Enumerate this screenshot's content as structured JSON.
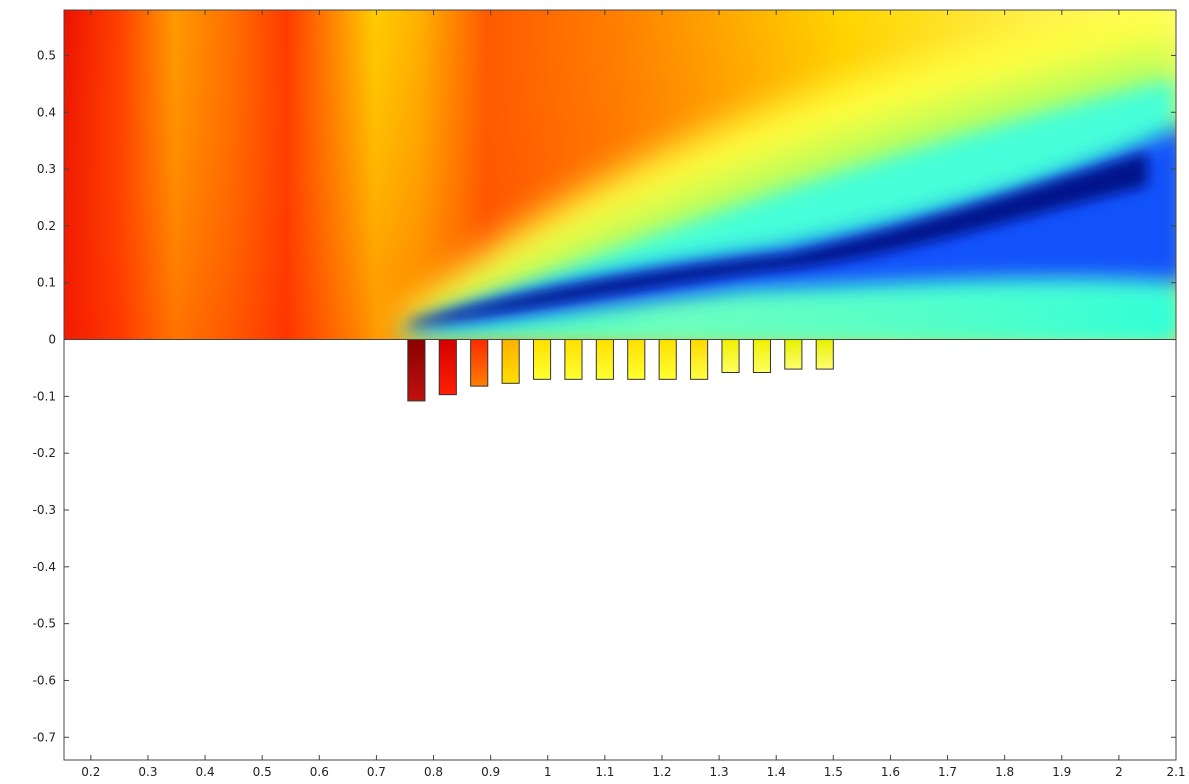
{
  "chart_data": {
    "type": "heatmap",
    "title": "",
    "xlabel": "",
    "ylabel": "",
    "xlim": [
      0.153,
      2.1
    ],
    "ylim": [
      -0.74,
      0.58
    ],
    "x_ticks": [
      "0.2",
      "0.3",
      "0.4",
      "0.5",
      "0.6",
      "0.7",
      "0.8",
      "0.9",
      "1",
      "1.1",
      "1.2",
      "1.3",
      "1.4",
      "1.5",
      "1.6",
      "1.7",
      "1.8",
      "1.9",
      "2",
      "2.1"
    ],
    "y_ticks": [
      "0.5",
      "0.4",
      "0.3",
      "0.2",
      "0.1",
      "0",
      "-0.1",
      "-0.2",
      "-0.3",
      "-0.4",
      "-0.5",
      "-0.6",
      "-0.7"
    ],
    "grid": false,
    "colormap": "jet",
    "field": {
      "x_range": [
        0.153,
        2.1
      ],
      "y_range": [
        0,
        0.58
      ],
      "description_colors": [
        "#7f0000",
        "#ff0000",
        "#ff8c00",
        "#ffff00",
        "#00ffff",
        "#0000ff",
        "#00007f"
      ]
    },
    "bars": {
      "width": 0.03,
      "items": [
        {
          "x": 0.77,
          "depth": -0.108,
          "color_top": "#8b0000",
          "color_bottom": "#c01010"
        },
        {
          "x": 0.825,
          "depth": -0.097,
          "color_top": "#d40000",
          "color_bottom": "#ff2000"
        },
        {
          "x": 0.88,
          "depth": -0.082,
          "color_top": "#ff2a00",
          "color_bottom": "#ff8000"
        },
        {
          "x": 0.935,
          "depth": -0.077,
          "color_top": "#ffb000",
          "color_bottom": "#ffe000"
        },
        {
          "x": 0.99,
          "depth": -0.07,
          "color_top": "#ffe000",
          "color_bottom": "#ffff30"
        },
        {
          "x": 1.045,
          "depth": -0.07,
          "color_top": "#ffe000",
          "color_bottom": "#ffff30"
        },
        {
          "x": 1.1,
          "depth": -0.07,
          "color_top": "#ffe000",
          "color_bottom": "#ffff30"
        },
        {
          "x": 1.155,
          "depth": -0.07,
          "color_top": "#ffe000",
          "color_bottom": "#ffff30"
        },
        {
          "x": 1.21,
          "depth": -0.07,
          "color_top": "#ffe000",
          "color_bottom": "#ffff30"
        },
        {
          "x": 1.265,
          "depth": -0.07,
          "color_top": "#ffd800",
          "color_bottom": "#ffff40"
        },
        {
          "x": 1.32,
          "depth": -0.058,
          "color_top": "#f0f000",
          "color_bottom": "#ffff60"
        },
        {
          "x": 1.375,
          "depth": -0.058,
          "color_top": "#f0f000",
          "color_bottom": "#ffff60"
        },
        {
          "x": 1.43,
          "depth": -0.052,
          "color_top": "#e8f000",
          "color_bottom": "#ffff70"
        },
        {
          "x": 1.485,
          "depth": -0.052,
          "color_top": "#e8f000",
          "color_bottom": "#ffff70"
        }
      ]
    }
  }
}
